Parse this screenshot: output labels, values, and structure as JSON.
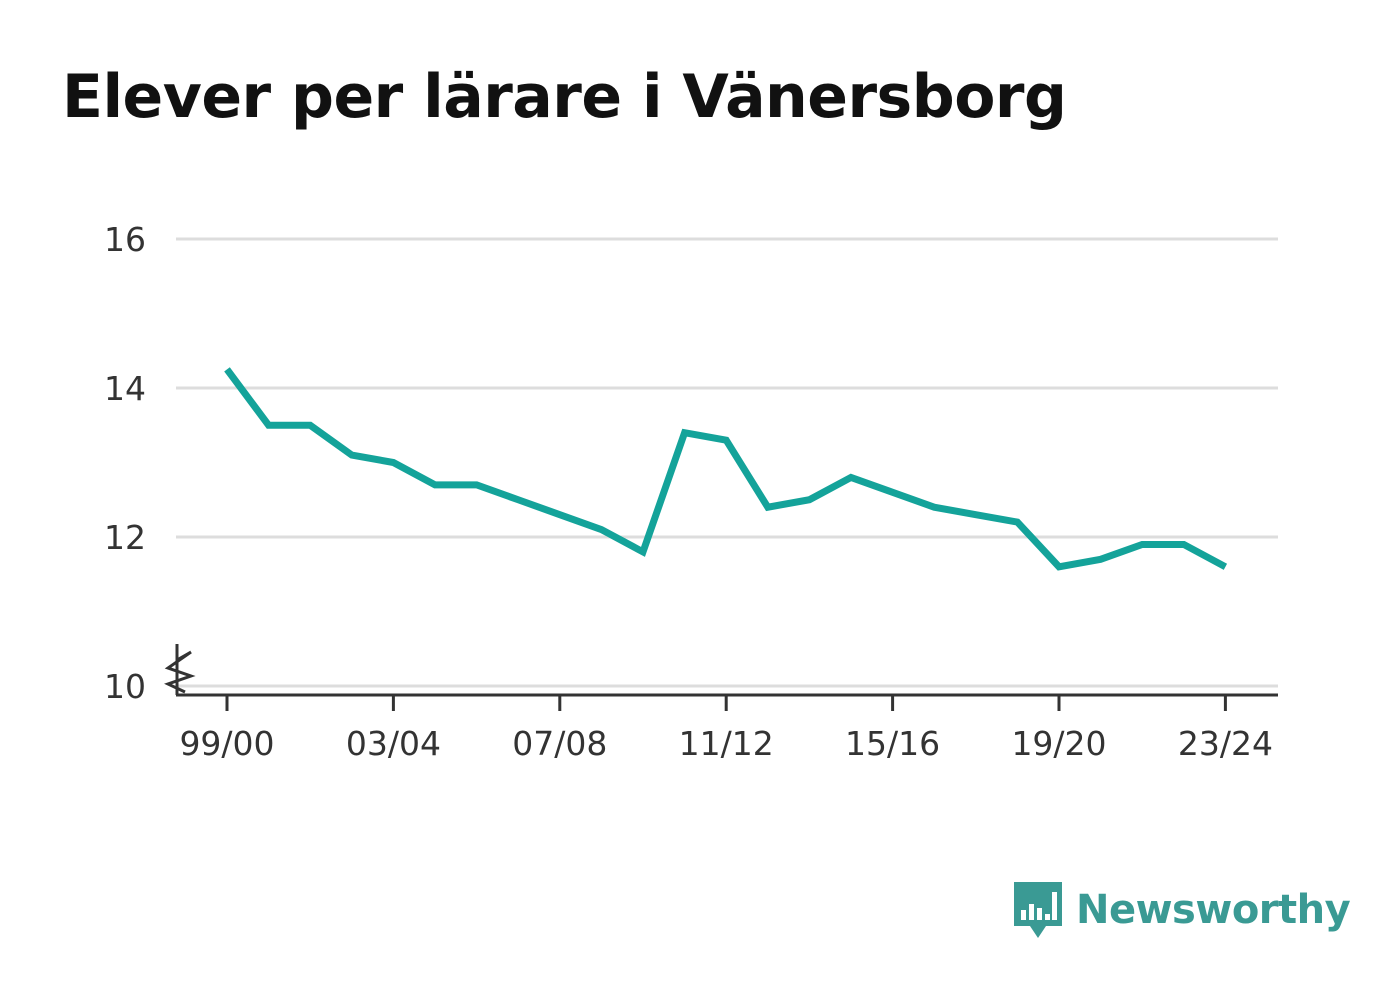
{
  "colors": {
    "line": "#14a39a",
    "grid": "#dddddd",
    "axis": "#333333",
    "brand": "#3a9a94"
  },
  "brand": {
    "name": "Newsworthy"
  },
  "chart_data": {
    "type": "line",
    "title": "Elever per lärare i Vänersborg",
    "xlabel": "",
    "ylabel": "",
    "ylim": [
      10,
      16
    ],
    "yticks": [
      10,
      12,
      14,
      16
    ],
    "xtick_labels": [
      "99/00",
      "03/04",
      "07/08",
      "11/12",
      "15/16",
      "19/20",
      "23/24"
    ],
    "grid": true,
    "axis_break": true,
    "x": [
      "99/00",
      "00/01",
      "01/02",
      "02/03",
      "03/04",
      "04/05",
      "05/06",
      "06/07",
      "07/08",
      "08/09",
      "09/10",
      "10/11",
      "11/12",
      "12/13",
      "13/14",
      "14/15",
      "15/16",
      "16/17",
      "17/18",
      "18/19",
      "19/20",
      "20/21",
      "21/22",
      "22/23",
      "23/24"
    ],
    "series": [
      {
        "values": [
          14.25,
          13.5,
          13.5,
          13.1,
          13.0,
          12.7,
          12.7,
          12.5,
          12.3,
          12.1,
          11.8,
          13.4,
          13.3,
          12.4,
          12.5,
          12.8,
          12.6,
          12.4,
          12.3,
          12.2,
          11.6,
          11.7,
          11.9,
          11.9,
          11.6
        ]
      }
    ]
  }
}
